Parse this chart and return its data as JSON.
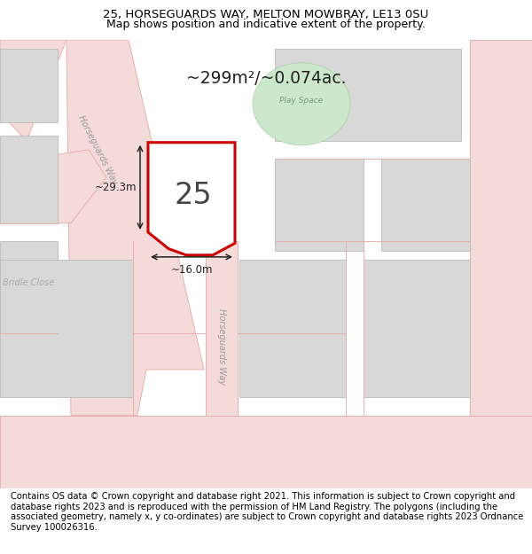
{
  "title_line1": "25, HORSEGUARDS WAY, MELTON MOWBRAY, LE13 0SU",
  "title_line2": "Map shows position and indicative extent of the property.",
  "footer_text": "Contains OS data © Crown copyright and database right 2021. This information is subject to Crown copyright and database rights 2023 and is reproduced with the permission of HM Land Registry. The polygons (including the associated geometry, namely x, y co-ordinates) are subject to Crown copyright and database rights 2023 Ordnance Survey 100026316.",
  "area_label": "~299m²/~0.074ac.",
  "plot_number": "25",
  "dim_width": "~16.0m",
  "dim_height": "~29.3m",
  "map_bg": "#f2f2f2",
  "road_fill": "#f5dada",
  "road_edge": "#e8b0b0",
  "green_fill": "#cce8cc",
  "green_edge": "#aaccaa",
  "building_fill": "#d8d8d8",
  "building_edge": "#bbbbbb",
  "prop_fill": "#ffffff",
  "prop_edge": "#cc0000",
  "prop_lw": 2.2,
  "ann_color": "#222222",
  "road_text_color": "#999999",
  "play_text_color": "#779977",
  "bridle_text_color": "#aaaaaa",
  "title_fontsize": 9.5,
  "footer_fontsize": 7.2
}
